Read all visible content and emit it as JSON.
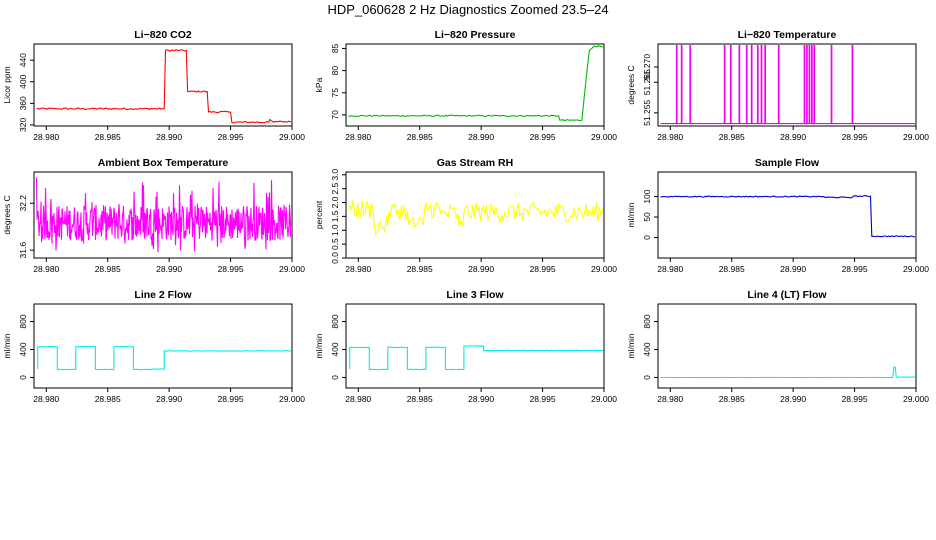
{
  "page": {
    "title": "HDP_060628  2 Hz Diagnostics Zoomed 23.5–24"
  },
  "chart_data": [
    {
      "type": "line",
      "title": "Li−820 CO2",
      "ylabel": "Licor ppm",
      "color": "#ff0000",
      "xlim": [
        28.979,
        29.0
      ],
      "ylim": [
        318,
        470
      ],
      "xticks": [
        "28.980",
        "28.985",
        "28.990",
        "28.995",
        "29.000"
      ],
      "xtick_values": [
        28.98,
        28.985,
        28.99,
        28.995,
        29.0
      ],
      "yticks": [
        "320",
        "360",
        "400",
        "440"
      ],
      "ytick_values": [
        320,
        360,
        400,
        440
      ],
      "noise": 1.5,
      "series": [
        {
          "x": [
            28.9792,
            28.9896,
            28.9897,
            28.9914,
            28.9915,
            28.9931,
            28.9932,
            28.995,
            28.9951,
            28.9981,
            28.9982,
            28.9985,
            28.9986,
            29.0
          ],
          "y": [
            350,
            350,
            458,
            458,
            382,
            382,
            344,
            344,
            325,
            325,
            330,
            325,
            326,
            326
          ]
        }
      ]
    },
    {
      "type": "line",
      "title": "Li−820 Pressure",
      "ylabel": "kPa",
      "color": "#00bb00",
      "xlim": [
        28.979,
        29.0
      ],
      "ylim": [
        67.5,
        86
      ],
      "xticks": [
        "28.980",
        "28.985",
        "28.990",
        "28.995",
        "29.000"
      ],
      "xtick_values": [
        28.98,
        28.985,
        28.99,
        28.995,
        29.0
      ],
      "yticks": [
        "70",
        "75",
        "80",
        "85"
      ],
      "ytick_values": [
        70,
        75,
        80,
        85
      ],
      "noise": 0.15,
      "series": [
        {
          "x": [
            28.9792,
            28.9963,
            28.9964,
            28.9982,
            28.9985,
            28.9988,
            28.9992,
            29.0
          ],
          "y": [
            69.8,
            69.8,
            68.8,
            68.8,
            77,
            84.5,
            85.5,
            85.5
          ]
        }
      ]
    },
    {
      "type": "line",
      "title": "Li−820 Temperature",
      "ylabel": "degrees C",
      "color": "#ee00ee",
      "xlim": [
        28.979,
        29.0
      ],
      "ylim": [
        51.2507,
        51.2775
      ],
      "xticks": [
        "28.980",
        "28.985",
        "28.990",
        "28.995",
        "29.000"
      ],
      "xtick_values": [
        28.98,
        28.985,
        28.99,
        28.995,
        29.0
      ],
      "yticks": [
        "51.255",
        "51.265",
        "51.270"
      ],
      "ytick_values": [
        51.255,
        51.265,
        51.27
      ],
      "base": 51.2515,
      "spike": 51.2775,
      "spikes_x": [
        28.9805,
        28.9809,
        28.9816,
        28.9844,
        28.9849,
        28.9856,
        28.9862,
        28.9866,
        28.9871,
        28.9874,
        28.9877,
        28.9888,
        28.9909,
        28.9911,
        28.9913,
        28.9915,
        28.9917,
        28.9931,
        28.9948
      ]
    },
    {
      "type": "line",
      "title": "Ambient Box Temperature",
      "ylabel": "degrees C",
      "color": "#ff00ff",
      "xlim": [
        28.979,
        29.0
      ],
      "ylim": [
        31.5,
        32.6
      ],
      "xticks": [
        "28.980",
        "28.985",
        "28.990",
        "28.995",
        "29.000"
      ],
      "xtick_values": [
        28.98,
        28.985,
        28.99,
        28.995,
        29.0
      ],
      "yticks": [
        "31.6",
        "32.2"
      ],
      "ytick_values": [
        31.6,
        32.2
      ],
      "band": [
        31.72,
        32.18
      ],
      "range": [
        31.55,
        32.55
      ],
      "x_range": [
        28.9792,
        29.0
      ]
    },
    {
      "type": "line",
      "title": "Gas Stream RH",
      "ylabel": "percent",
      "color": "#ffff00",
      "xlim": [
        28.979,
        29.0
      ],
      "ylim": [
        0,
        3.1
      ],
      "xticks": [
        "28.980",
        "28.985",
        "28.990",
        "28.995",
        "29.000"
      ],
      "xtick_values": [
        28.98,
        28.985,
        28.99,
        28.995,
        29.0
      ],
      "yticks": [
        "0.0",
        "0.5",
        "1.0",
        "1.5",
        "2.0",
        "2.5",
        "3.0"
      ],
      "ytick_values": [
        0,
        0.5,
        1,
        1.5,
        2,
        2.5,
        3
      ],
      "noise": 0.35,
      "series": [
        {
          "x": [
            28.9792,
            28.9812,
            28.9813,
            28.9824,
            28.9825,
            28.984,
            28.9841,
            28.9853,
            28.9854,
            28.9866,
            28.9867,
            28.9881,
            28.9882,
            28.9885,
            28.9886,
            29.0
          ],
          "y": [
            1.75,
            1.75,
            1.15,
            1.15,
            1.7,
            1.7,
            1.2,
            1.2,
            1.8,
            1.8,
            1.6,
            1.6,
            1.15,
            1.15,
            1.65,
            1.65
          ]
        }
      ]
    },
    {
      "type": "line",
      "title": "Sample Flow",
      "ylabel": "ml/min",
      "color": "#0000cc",
      "xlim": [
        28.979,
        29.0
      ],
      "ylim": [
        -50,
        160
      ],
      "xticks": [
        "28.980",
        "28.985",
        "28.990",
        "28.995",
        "29.000"
      ],
      "xtick_values": [
        28.98,
        28.985,
        28.99,
        28.995,
        29.0
      ],
      "yticks": [
        "0",
        "50",
        "100"
      ],
      "ytick_values": [
        0,
        50,
        100
      ],
      "noise": 1.2,
      "series": [
        {
          "x": [
            28.9792,
            28.9925,
            28.9926,
            28.9948,
            28.9949,
            28.9963,
            28.9964,
            29.0
          ],
          "y": [
            100,
            100,
            98,
            98,
            101,
            101,
            3,
            3
          ]
        }
      ]
    },
    {
      "type": "line",
      "title": "Line 2 Flow",
      "ylabel": "ml/min",
      "color": "#00eeee",
      "xlim": [
        28.979,
        29.0
      ],
      "ylim": [
        -150,
        1050
      ],
      "xticks": [
        "28.980",
        "28.985",
        "28.990",
        "28.995",
        "29.000"
      ],
      "xtick_values": [
        28.98,
        28.985,
        28.99,
        28.995,
        29.0
      ],
      "yticks": [
        "0",
        "400",
        "800"
      ],
      "ytick_values": [
        0,
        400,
        800
      ],
      "noise": 4,
      "series": [
        {
          "x": [
            28.9793,
            28.9793,
            28.9809,
            28.9809,
            28.9824,
            28.9824,
            28.984,
            28.984,
            28.9855,
            28.9855,
            28.9871,
            28.9871,
            28.9886,
            28.9886,
            28.9896,
            28.9896,
            29.0
          ],
          "y": [
            120,
            440,
            440,
            115,
            115,
            440,
            440,
            115,
            115,
            440,
            440,
            115,
            115,
            120,
            120,
            380,
            380
          ]
        }
      ]
    },
    {
      "type": "line",
      "title": "Line 3 Flow",
      "ylabel": "ml/min",
      "color": "#00eeee",
      "xlim": [
        28.979,
        29.0
      ],
      "ylim": [
        -150,
        1050
      ],
      "xticks": [
        "28.980",
        "28.985",
        "28.990",
        "28.995",
        "29.000"
      ],
      "xtick_values": [
        28.98,
        28.985,
        28.99,
        28.995,
        29.0
      ],
      "yticks": [
        "0",
        "400",
        "800"
      ],
      "ytick_values": [
        0,
        400,
        800
      ],
      "noise": 4,
      "series": [
        {
          "x": [
            28.9793,
            28.9793,
            28.9809,
            28.9809,
            28.9824,
            28.9824,
            28.984,
            28.984,
            28.9855,
            28.9855,
            28.9871,
            28.9871,
            28.9886,
            28.9886,
            28.9902,
            28.9902,
            29.0
          ],
          "y": [
            120,
            430,
            430,
            115,
            115,
            430,
            430,
            115,
            115,
            430,
            430,
            115,
            115,
            450,
            450,
            385,
            385
          ]
        }
      ]
    },
    {
      "type": "line",
      "title": "Line 4 (LT) Flow",
      "ylabel": "ml/min",
      "color": "#00eeee",
      "xlim": [
        28.979,
        29.0
      ],
      "ylim": [
        -150,
        1050
      ],
      "xticks": [
        "28.980",
        "28.985",
        "28.990",
        "28.995",
        "29.000"
      ],
      "xtick_values": [
        28.98,
        28.985,
        28.99,
        28.995,
        29.0
      ],
      "yticks": [
        "0",
        "400",
        "800"
      ],
      "ytick_values": [
        0,
        400,
        800
      ],
      "noise": 1,
      "series": [
        {
          "x": [
            28.9792,
            28.9981,
            28.9982,
            28.9983,
            28.9984,
            29.0
          ],
          "y": [
            0,
            0,
            150,
            150,
            5,
            5
          ]
        }
      ]
    }
  ]
}
